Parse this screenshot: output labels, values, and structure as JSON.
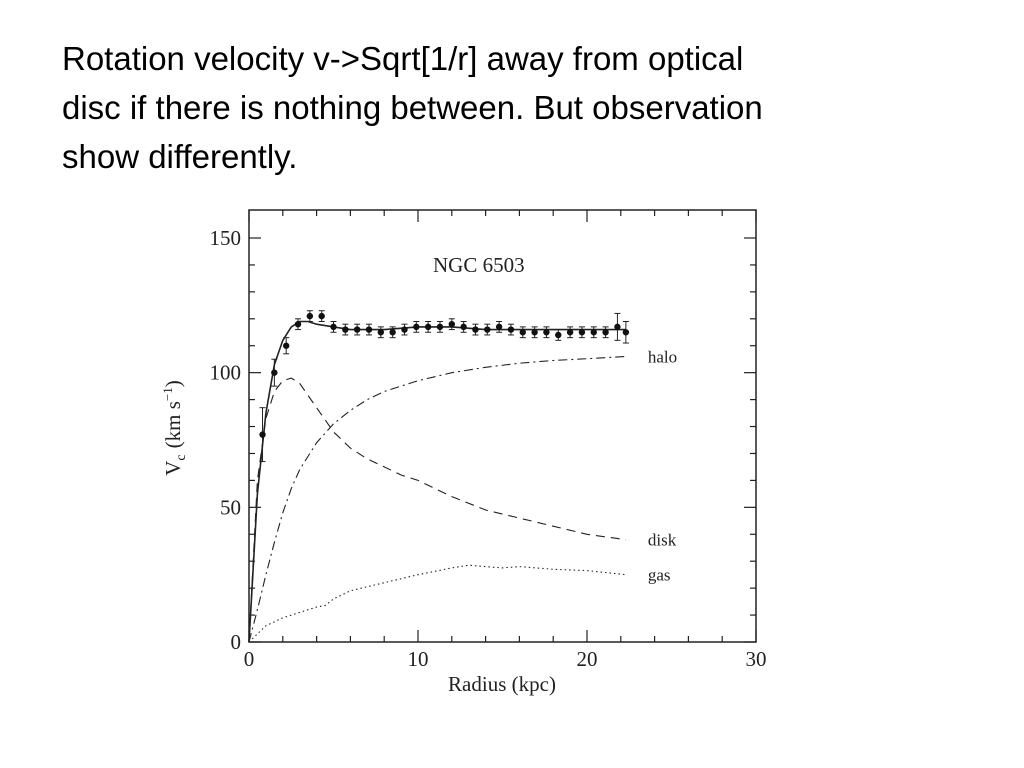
{
  "slide": {
    "text_lines": [
      "Rotation velocity v->Sqrt[1/r] away from optical",
      "disc if there is nothing between. But observation",
      "show differently."
    ]
  },
  "chart_data": {
    "type": "line",
    "title": "NGC 6503",
    "xlabel": "Radius (kpc)",
    "ylabel": "V",
    "ylabel_sub": "c",
    "ylabel_units": "(km s",
    "ylabel_sup": "−1",
    "ylabel_close": ")",
    "xlim": [
      0,
      30
    ],
    "ylim": [
      0,
      150
    ],
    "xticks": [
      0,
      10,
      20,
      30
    ],
    "yticks": [
      0,
      50,
      100,
      150
    ],
    "grid": false,
    "observed": {
      "x": [
        0.8,
        1.5,
        2.2,
        2.9,
        3.6,
        4.3,
        5.0,
        5.7,
        6.4,
        7.1,
        7.8,
        8.5,
        9.2,
        9.9,
        10.6,
        11.3,
        12.0,
        12.7,
        13.4,
        14.1,
        14.8,
        15.5,
        16.2,
        16.9,
        17.6,
        18.3,
        19.0,
        19.7,
        20.4,
        21.1,
        21.8,
        22.3
      ],
      "y": [
        77,
        100,
        110,
        118,
        121,
        121,
        117,
        116,
        116,
        116,
        115,
        115,
        116,
        117,
        117,
        117,
        118,
        117,
        116,
        116,
        117,
        116,
        115,
        115,
        115,
        114,
        115,
        115,
        115,
        115,
        117,
        115
      ],
      "err": [
        10,
        5,
        3,
        2,
        2,
        2,
        2,
        2,
        2,
        2,
        2,
        2,
        2,
        2,
        2,
        2,
        2,
        2,
        2,
        2,
        2,
        2,
        2,
        2,
        2,
        2,
        2,
        2,
        2,
        2,
        5,
        4
      ]
    },
    "series": [
      {
        "name": "",
        "style": "solid",
        "x": [
          0,
          0.5,
          1.0,
          1.5,
          2.0,
          2.5,
          3.0,
          3.5,
          4.0,
          5.0,
          6.0,
          8.0,
          10.0,
          12.0,
          14.0,
          16.0,
          18.0,
          20.0,
          22.3
        ],
        "y": [
          0,
          55,
          85,
          103,
          112,
          117,
          119,
          119,
          118,
          117,
          116,
          116,
          117,
          117,
          116,
          116,
          116,
          116,
          116
        ]
      },
      {
        "name": "halo",
        "style": "dashdot",
        "x": [
          0,
          0.5,
          1.0,
          1.5,
          2.0,
          2.5,
          3.0,
          4.0,
          5.0,
          6.0,
          7.0,
          8.0,
          10.0,
          12.0,
          14.0,
          16.0,
          18.0,
          20.0,
          22.3
        ],
        "y": [
          0,
          12,
          25,
          37,
          48,
          57,
          64,
          74,
          81,
          86,
          90,
          93,
          97,
          100,
          102,
          103.5,
          104.5,
          105.2,
          106
        ]
      },
      {
        "name": "disk",
        "style": "dashed",
        "x": [
          0,
          0.5,
          1.0,
          1.5,
          2.0,
          2.5,
          3.0,
          4.0,
          5.0,
          6.0,
          7.0,
          8.0,
          9.0,
          10.0,
          12.0,
          14.0,
          16.0,
          18.0,
          20.0,
          22.3
        ],
        "y": [
          0,
          60,
          83,
          93,
          97,
          98,
          96,
          87,
          78,
          72,
          68,
          65,
          62,
          60,
          54,
          49,
          46,
          43,
          40,
          38
        ]
      },
      {
        "name": "gas",
        "style": "dotted",
        "x": [
          0,
          0.5,
          1.0,
          2.0,
          3.0,
          4.0,
          4.5,
          5.0,
          6.0,
          8.0,
          10.0,
          12.0,
          13.0,
          14.0,
          15.0,
          16.0,
          17.0,
          18.0,
          20.0,
          22.3
        ],
        "y": [
          0,
          3,
          6,
          9,
          11,
          13,
          13.5,
          16,
          19,
          22,
          25,
          27.5,
          28.5,
          28,
          27.5,
          28,
          27.5,
          27,
          26.5,
          25
        ]
      }
    ]
  }
}
